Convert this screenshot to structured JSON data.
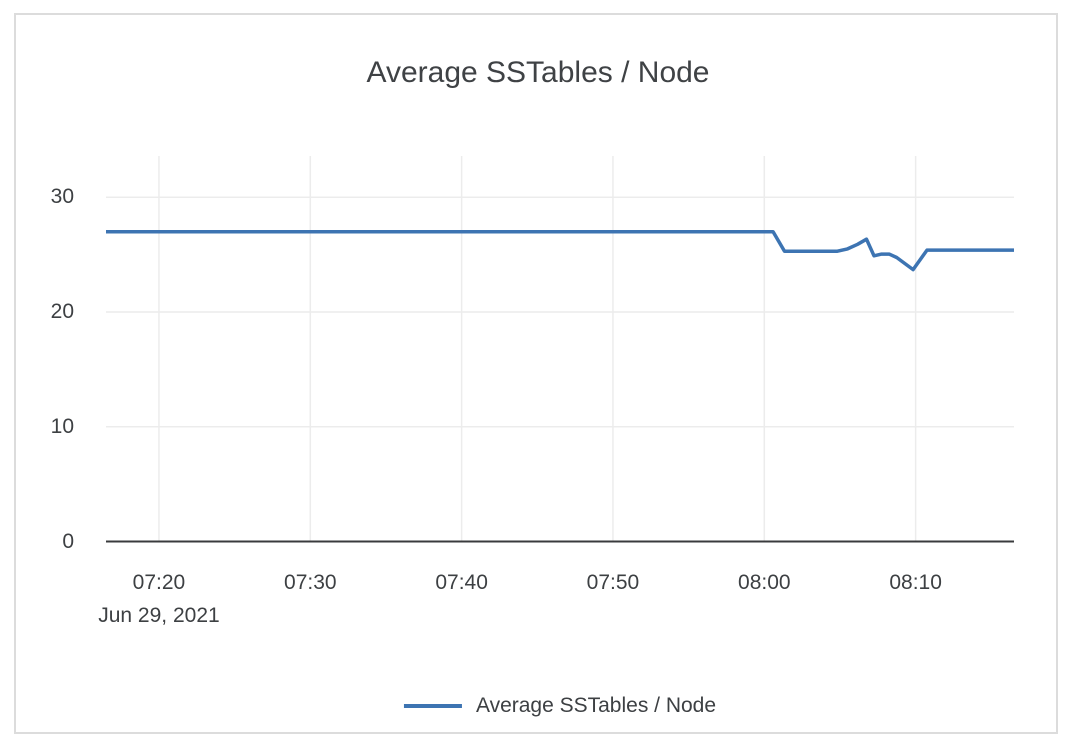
{
  "title": "Average SSTables / Node",
  "colors": {
    "line": "#3d74b2",
    "grid": "#ececec",
    "axis": "#3a3b3d",
    "text": "#3d4043",
    "title_text": "#3f4245",
    "card_border": "#dcdcdc",
    "background": "#ffffff"
  },
  "legend": {
    "label": "Average SSTables / Node",
    "swatch_color": "#3d74b2",
    "position": "bottom-center"
  },
  "chart_data": {
    "type": "line",
    "title": "Average SSTables / Node",
    "xlabel": "",
    "ylabel": "",
    "grid": true,
    "legend_position": "bottom",
    "x_axis": {
      "date_label": "Jun 29, 2021",
      "tick_labels": [
        "07:20",
        "07:30",
        "07:40",
        "07:50",
        "08:00",
        "08:10"
      ],
      "range": [
        "07:16:30",
        "08:16:30"
      ]
    },
    "y_axis": {
      "tick_labels": [
        0,
        10,
        20,
        30
      ],
      "range": [
        0,
        33.6
      ]
    },
    "series": [
      {
        "name": "Average SSTables / Node",
        "color": "#3d74b2",
        "points": [
          [
            "07:16:30",
            27
          ],
          [
            "08:00:35",
            27
          ],
          [
            "08:01:20",
            25.3
          ],
          [
            "08:04:50",
            25.3
          ],
          [
            "08:05:30",
            25.5
          ],
          [
            "08:06:10",
            25.9
          ],
          [
            "08:06:45",
            26.35
          ],
          [
            "08:07:15",
            24.9
          ],
          [
            "08:07:45",
            25.05
          ],
          [
            "08:08:15",
            25.05
          ],
          [
            "08:08:45",
            24.75
          ],
          [
            "08:09:50",
            23.7
          ],
          [
            "08:10:45",
            25.4
          ],
          [
            "08:16:30",
            25.4
          ]
        ]
      }
    ]
  }
}
